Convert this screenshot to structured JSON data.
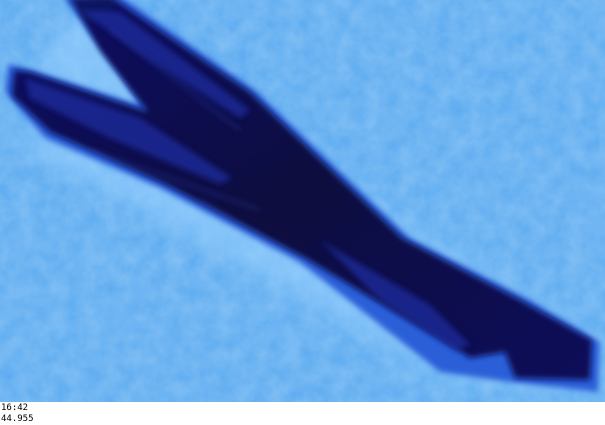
{
  "image": {
    "subject": "dark-blue-crystal-bundle-icon",
    "colors": {
      "background": "#5aaaf0",
      "background_light": "#8cc8f8",
      "object_dark": "#0a0a50",
      "object_mid": "#1f2b9a",
      "object_edge": "#2a5fd8",
      "caption_bg": "#ffffff",
      "caption_text": "#000000"
    }
  },
  "caption": {
    "time": "16:42",
    "value": "44.955"
  }
}
